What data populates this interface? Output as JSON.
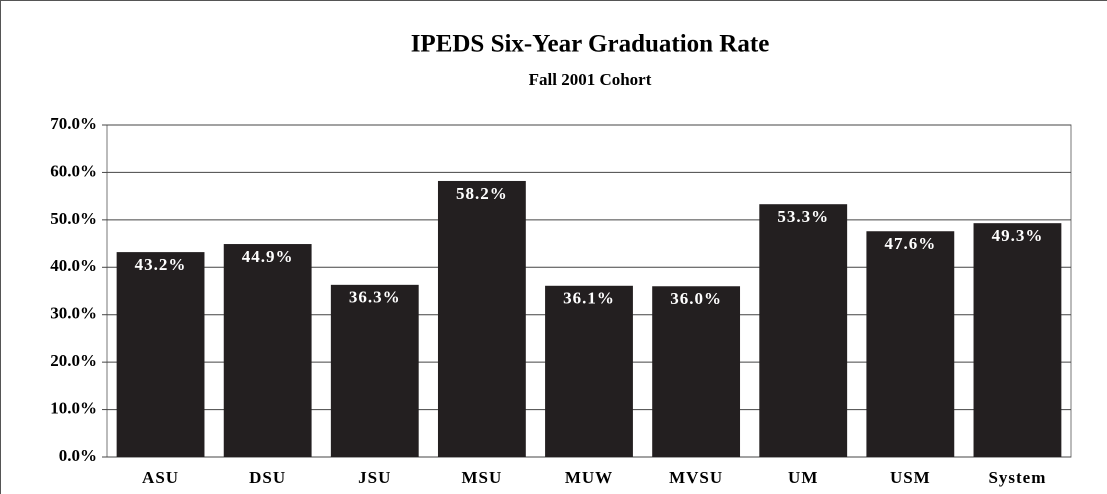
{
  "chart_data": {
    "type": "bar",
    "title": "IPEDS Six-Year Graduation Rate",
    "subtitle": "Fall 2001 Cohort",
    "categories": [
      "ASU",
      "DSU",
      "JSU",
      "MSU",
      "MUW",
      "MVSU",
      "UM",
      "USM",
      "System"
    ],
    "values": [
      43.2,
      44.9,
      36.3,
      58.2,
      36.1,
      36.0,
      53.3,
      47.6,
      49.3
    ],
    "value_labels": [
      "43.2%",
      "44.9%",
      "36.3%",
      "58.2%",
      "36.1%",
      "36.0%",
      "53.3%",
      "47.6%",
      "49.3%"
    ],
    "color": "#231f20",
    "ylim": [
      0,
      70
    ],
    "yticks": [
      {
        "value": 0,
        "label": "0.0%"
      },
      {
        "value": 10,
        "label": "10.0%"
      },
      {
        "value": 20,
        "label": "20.0%"
      },
      {
        "value": 30,
        "label": "30.0%"
      },
      {
        "value": 40,
        "label": "40.0%"
      },
      {
        "value": 50,
        "label": "50.0%"
      },
      {
        "value": 60,
        "label": "60.0%"
      },
      {
        "value": 70,
        "label": "70.0%"
      }
    ],
    "grid": true
  }
}
